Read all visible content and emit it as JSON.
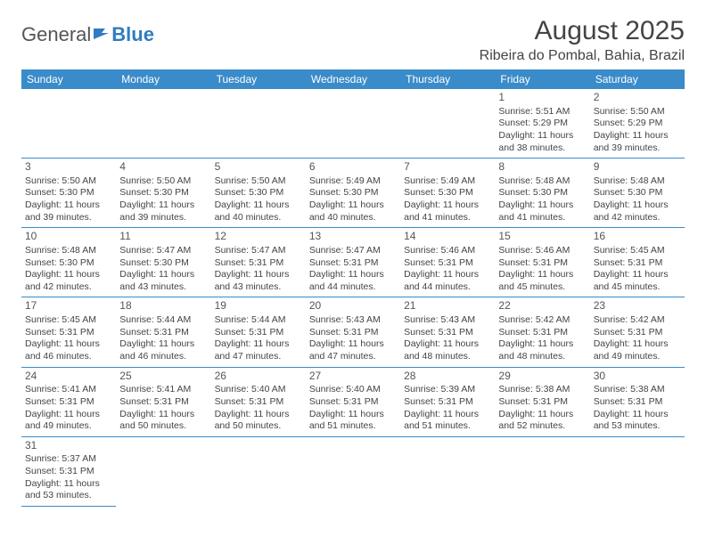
{
  "logo": {
    "text1": "General",
    "text2": "Blue"
  },
  "header": {
    "month_title": "August 2025",
    "location": "Ribeira do Pombal, Bahia, Brazil"
  },
  "colors": {
    "header_bg": "#3a8bc9",
    "header_text": "#ffffff",
    "cell_border": "#3a8bc9",
    "body_text": "#444444",
    "logo_blue": "#2e7cc2"
  },
  "day_headers": [
    "Sunday",
    "Monday",
    "Tuesday",
    "Wednesday",
    "Thursday",
    "Friday",
    "Saturday"
  ],
  "weeks": [
    [
      null,
      null,
      null,
      null,
      null,
      {
        "n": "1",
        "sunrise": "5:51 AM",
        "sunset": "5:29 PM",
        "day_h": "11",
        "day_m": "38"
      },
      {
        "n": "2",
        "sunrise": "5:50 AM",
        "sunset": "5:29 PM",
        "day_h": "11",
        "day_m": "39"
      }
    ],
    [
      {
        "n": "3",
        "sunrise": "5:50 AM",
        "sunset": "5:30 PM",
        "day_h": "11",
        "day_m": "39"
      },
      {
        "n": "4",
        "sunrise": "5:50 AM",
        "sunset": "5:30 PM",
        "day_h": "11",
        "day_m": "39"
      },
      {
        "n": "5",
        "sunrise": "5:50 AM",
        "sunset": "5:30 PM",
        "day_h": "11",
        "day_m": "40"
      },
      {
        "n": "6",
        "sunrise": "5:49 AM",
        "sunset": "5:30 PM",
        "day_h": "11",
        "day_m": "40"
      },
      {
        "n": "7",
        "sunrise": "5:49 AM",
        "sunset": "5:30 PM",
        "day_h": "11",
        "day_m": "41"
      },
      {
        "n": "8",
        "sunrise": "5:48 AM",
        "sunset": "5:30 PM",
        "day_h": "11",
        "day_m": "41"
      },
      {
        "n": "9",
        "sunrise": "5:48 AM",
        "sunset": "5:30 PM",
        "day_h": "11",
        "day_m": "42"
      }
    ],
    [
      {
        "n": "10",
        "sunrise": "5:48 AM",
        "sunset": "5:30 PM",
        "day_h": "11",
        "day_m": "42"
      },
      {
        "n": "11",
        "sunrise": "5:47 AM",
        "sunset": "5:30 PM",
        "day_h": "11",
        "day_m": "43"
      },
      {
        "n": "12",
        "sunrise": "5:47 AM",
        "sunset": "5:31 PM",
        "day_h": "11",
        "day_m": "43"
      },
      {
        "n": "13",
        "sunrise": "5:47 AM",
        "sunset": "5:31 PM",
        "day_h": "11",
        "day_m": "44"
      },
      {
        "n": "14",
        "sunrise": "5:46 AM",
        "sunset": "5:31 PM",
        "day_h": "11",
        "day_m": "44"
      },
      {
        "n": "15",
        "sunrise": "5:46 AM",
        "sunset": "5:31 PM",
        "day_h": "11",
        "day_m": "45"
      },
      {
        "n": "16",
        "sunrise": "5:45 AM",
        "sunset": "5:31 PM",
        "day_h": "11",
        "day_m": "45"
      }
    ],
    [
      {
        "n": "17",
        "sunrise": "5:45 AM",
        "sunset": "5:31 PM",
        "day_h": "11",
        "day_m": "46"
      },
      {
        "n": "18",
        "sunrise": "5:44 AM",
        "sunset": "5:31 PM",
        "day_h": "11",
        "day_m": "46"
      },
      {
        "n": "19",
        "sunrise": "5:44 AM",
        "sunset": "5:31 PM",
        "day_h": "11",
        "day_m": "47"
      },
      {
        "n": "20",
        "sunrise": "5:43 AM",
        "sunset": "5:31 PM",
        "day_h": "11",
        "day_m": "47"
      },
      {
        "n": "21",
        "sunrise": "5:43 AM",
        "sunset": "5:31 PM",
        "day_h": "11",
        "day_m": "48"
      },
      {
        "n": "22",
        "sunrise": "5:42 AM",
        "sunset": "5:31 PM",
        "day_h": "11",
        "day_m": "48"
      },
      {
        "n": "23",
        "sunrise": "5:42 AM",
        "sunset": "5:31 PM",
        "day_h": "11",
        "day_m": "49"
      }
    ],
    [
      {
        "n": "24",
        "sunrise": "5:41 AM",
        "sunset": "5:31 PM",
        "day_h": "11",
        "day_m": "49"
      },
      {
        "n": "25",
        "sunrise": "5:41 AM",
        "sunset": "5:31 PM",
        "day_h": "11",
        "day_m": "50"
      },
      {
        "n": "26",
        "sunrise": "5:40 AM",
        "sunset": "5:31 PM",
        "day_h": "11",
        "day_m": "50"
      },
      {
        "n": "27",
        "sunrise": "5:40 AM",
        "sunset": "5:31 PM",
        "day_h": "11",
        "day_m": "51"
      },
      {
        "n": "28",
        "sunrise": "5:39 AM",
        "sunset": "5:31 PM",
        "day_h": "11",
        "day_m": "51"
      },
      {
        "n": "29",
        "sunrise": "5:38 AM",
        "sunset": "5:31 PM",
        "day_h": "11",
        "day_m": "52"
      },
      {
        "n": "30",
        "sunrise": "5:38 AM",
        "sunset": "5:31 PM",
        "day_h": "11",
        "day_m": "53"
      }
    ],
    [
      {
        "n": "31",
        "sunrise": "5:37 AM",
        "sunset": "5:31 PM",
        "day_h": "11",
        "day_m": "53"
      },
      null,
      null,
      null,
      null,
      null,
      null
    ]
  ],
  "labels": {
    "sunrise": "Sunrise:",
    "sunset": "Sunset:",
    "daylight": "Daylight:",
    "hours": "hours",
    "and": "and",
    "minutes": "minutes."
  }
}
